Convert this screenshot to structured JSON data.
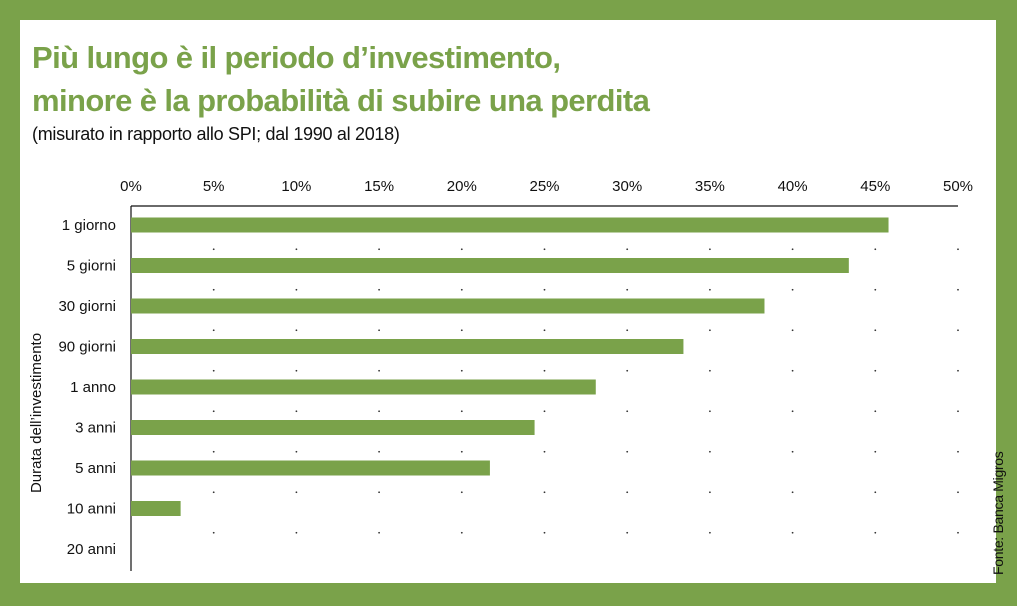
{
  "title_line1": "Più lungo è il periodo d’investimento,",
  "title_line2": "minore è la probabilità di subire una perdita",
  "subtitle": "(misurato in rapporto allo SPI; dal 1990 al 2018)",
  "source": "Fonte: Banca Migros",
  "colors": {
    "bar": "#7aa24a",
    "frame": "#7aa24a",
    "text": "#111111"
  },
  "chart_data": {
    "type": "bar",
    "orientation": "horizontal",
    "ylabel": "Durata dell’investimento",
    "categories": [
      "1 giorno",
      "5 giorni",
      "30 giorni",
      "90 giorni",
      "1 anno",
      "3 anni",
      "5 anni",
      "10 anni",
      "20 anni"
    ],
    "values": [
      45.8,
      43.4,
      38.3,
      33.4,
      28.1,
      24.4,
      21.7,
      3.0,
      0
    ],
    "unit": "%",
    "xlim": [
      0,
      50
    ],
    "xticks": [
      0,
      5,
      10,
      15,
      20,
      25,
      30,
      35,
      40,
      45,
      50
    ],
    "xtick_labels": [
      "0%",
      "5%",
      "10%",
      "15%",
      "20%",
      "25%",
      "30%",
      "35%",
      "40%",
      "45%",
      "50%"
    ],
    "xaxis_position": "top",
    "grid": "dotted"
  }
}
